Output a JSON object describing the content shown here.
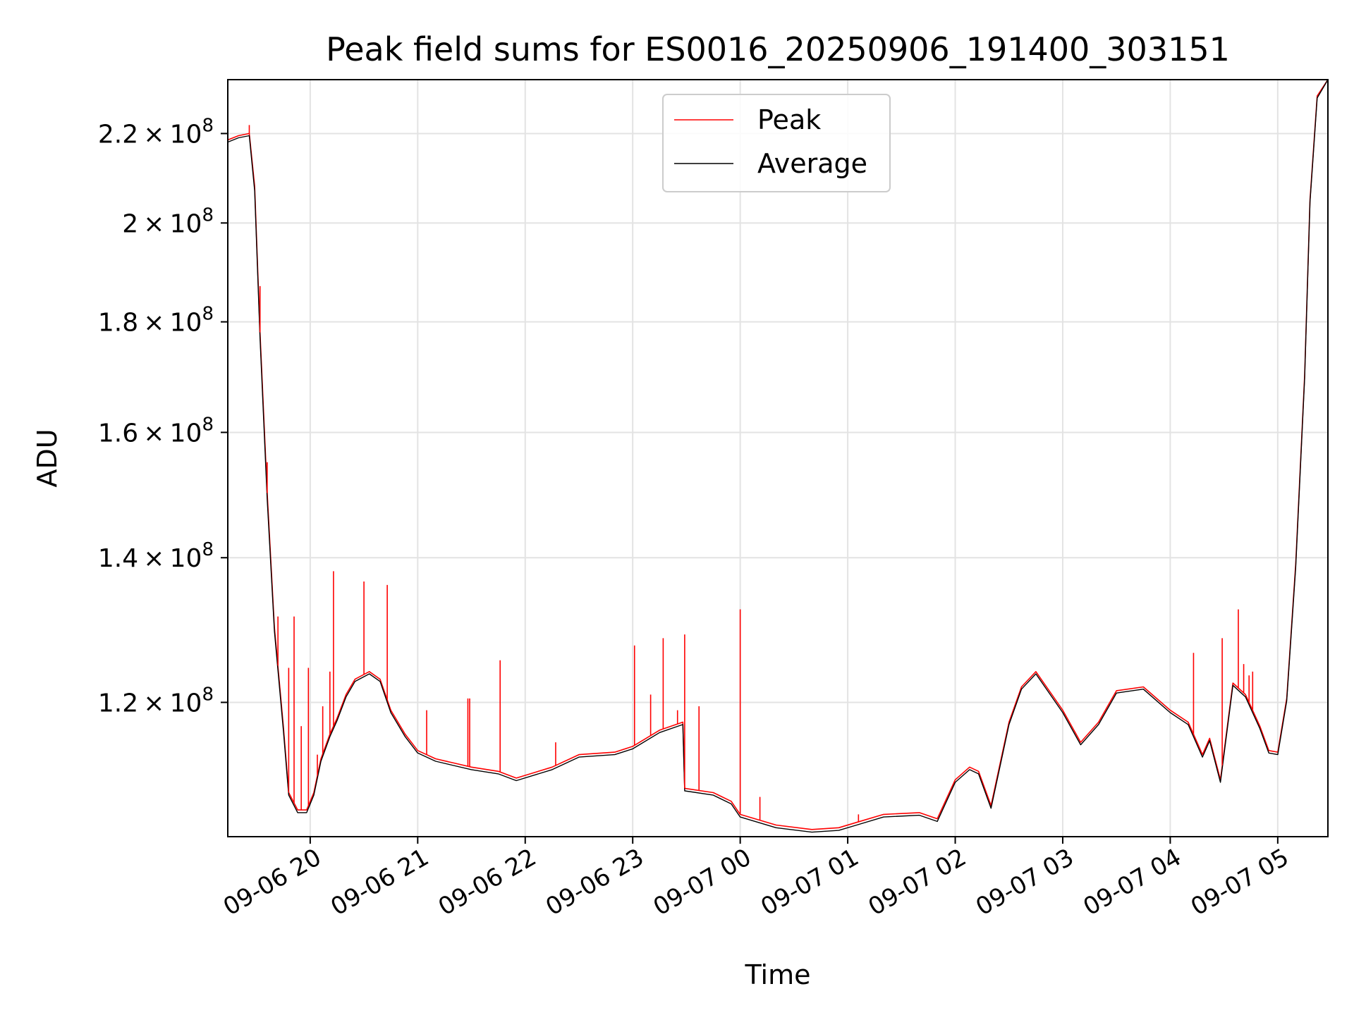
{
  "chart_data": {
    "type": "line",
    "title": "Peak field sums for ES0016_20250906_191400_303151",
    "xlabel": "Time",
    "ylabel": "ADU",
    "yscale": "log",
    "ylim": [
      104000000,
      233000000
    ],
    "xlim": [
      "2025-09-06 19:14",
      "2025-09-07 05:28"
    ],
    "grid": true,
    "legend": {
      "placement": "top-center"
    },
    "x_ticks": [
      "09-06 20",
      "09-06 21",
      "09-06 22",
      "09-06 23",
      "09-07 00",
      "09-07 01",
      "09-07 02",
      "09-07 03",
      "09-07 04",
      "09-07 05"
    ],
    "y_ticks": [
      {
        "value": 120000000,
        "mantissa": "1.2",
        "exponent": "8"
      },
      {
        "value": 140000000,
        "mantissa": "1.4",
        "exponent": "8"
      },
      {
        "value": 160000000,
        "mantissa": "1.6",
        "exponent": "8"
      },
      {
        "value": 180000000,
        "mantissa": "1.8",
        "exponent": "8"
      },
      {
        "value": 200000000,
        "mantissa": "2",
        "exponent": "8"
      },
      {
        "value": 220000000,
        "mantissa": "2.2",
        "exponent": "8"
      }
    ],
    "series": [
      {
        "name": "Peak",
        "color": "#ff0000",
        "x": [
          "2025-09-06 19:14",
          "2025-09-06 19:20",
          "2025-09-06 19:26",
          "2025-09-06 19:29",
          "2025-09-06 19:32",
          "2025-09-06 19:36",
          "2025-09-06 19:40",
          "2025-09-06 19:45",
          "2025-09-06 19:48",
          "2025-09-06 19:53",
          "2025-09-06 19:58",
          "2025-09-06 20:02",
          "2025-09-06 20:06",
          "2025-09-06 20:11",
          "2025-09-06 20:15",
          "2025-09-06 20:20",
          "2025-09-06 20:25",
          "2025-09-06 20:33",
          "2025-09-06 20:39",
          "2025-09-06 20:45",
          "2025-09-06 20:53",
          "2025-09-06 21:00",
          "2025-09-06 21:10",
          "2025-09-06 21:20",
          "2025-09-06 21:30",
          "2025-09-06 21:45",
          "2025-09-06 21:55",
          "2025-09-06 22:15",
          "2025-09-06 22:30",
          "2025-09-06 22:50",
          "2025-09-06 23:00",
          "2025-09-06 23:15",
          "2025-09-06 23:28",
          "2025-09-06 23:29",
          "2025-09-06 23:45",
          "2025-09-06 23:55",
          "2025-09-07 00:00",
          "2025-09-07 00:20",
          "2025-09-07 00:40",
          "2025-09-07 00:55",
          "2025-09-07 01:05",
          "2025-09-07 01:20",
          "2025-09-07 01:40",
          "2025-09-07 01:50",
          "2025-09-07 02:00",
          "2025-09-07 02:08",
          "2025-09-07 02:13",
          "2025-09-07 02:20",
          "2025-09-07 02:30",
          "2025-09-07 02:37",
          "2025-09-07 02:45",
          "2025-09-07 03:00",
          "2025-09-07 03:10",
          "2025-09-07 03:20",
          "2025-09-07 03:30",
          "2025-09-07 03:45",
          "2025-09-07 04:00",
          "2025-09-07 04:10",
          "2025-09-07 04:13",
          "2025-09-07 04:18",
          "2025-09-07 04:22",
          "2025-09-07 04:28",
          "2025-09-07 04:35",
          "2025-09-07 04:42",
          "2025-09-07 04:50",
          "2025-09-07 04:55",
          "2025-09-07 05:00",
          "2025-09-07 05:05",
          "2025-09-07 05:10",
          "2025-09-07 05:15",
          "2025-09-07 05:18",
          "2025-09-07 05:22",
          "2025-09-07 05:28"
        ],
        "values": [
          218500000,
          219500000,
          220000000,
          208000000,
          178000000,
          150000000,
          130000000,
          117000000,
          109000000,
          107000000,
          107000000,
          109000000,
          113000000,
          116000000,
          118000000,
          121000000,
          123000000,
          124000000,
          123000000,
          119000000,
          116000000,
          114000000,
          113000000,
          112500000,
          112000000,
          111500000,
          110700000,
          112000000,
          113500000,
          113800000,
          114500000,
          116500000,
          117500000,
          109500000,
          109000000,
          108000000,
          106500000,
          105300000,
          104800000,
          105000000,
          105600000,
          106500000,
          106700000,
          106000000,
          110500000,
          112000000,
          111500000,
          107500000,
          117500000,
          122000000,
          124000000,
          119000000,
          115000000,
          117500000,
          121500000,
          122000000,
          119000000,
          117500000,
          116000000,
          113500000,
          115500000,
          110500000,
          122500000,
          121000000,
          117000000,
          114000000,
          113800000,
          120500000,
          139000000,
          170000000,
          205000000,
          229000000,
          233000000
        ]
      },
      {
        "name": "Average",
        "color": "#000000",
        "x": [
          "2025-09-06 19:14",
          "2025-09-06 19:20",
          "2025-09-06 19:26",
          "2025-09-06 19:29",
          "2025-09-06 19:32",
          "2025-09-06 19:36",
          "2025-09-06 19:40",
          "2025-09-06 19:45",
          "2025-09-06 19:48",
          "2025-09-06 19:53",
          "2025-09-06 19:58",
          "2025-09-06 20:02",
          "2025-09-06 20:06",
          "2025-09-06 20:11",
          "2025-09-06 20:15",
          "2025-09-06 20:20",
          "2025-09-06 20:25",
          "2025-09-06 20:33",
          "2025-09-06 20:39",
          "2025-09-06 20:45",
          "2025-09-06 20:53",
          "2025-09-06 21:00",
          "2025-09-06 21:10",
          "2025-09-06 21:20",
          "2025-09-06 21:30",
          "2025-09-06 21:45",
          "2025-09-06 21:55",
          "2025-09-06 22:15",
          "2025-09-06 22:30",
          "2025-09-06 22:50",
          "2025-09-06 23:00",
          "2025-09-06 23:15",
          "2025-09-06 23:28",
          "2025-09-06 23:29",
          "2025-09-06 23:45",
          "2025-09-06 23:55",
          "2025-09-07 00:00",
          "2025-09-07 00:20",
          "2025-09-07 00:40",
          "2025-09-07 00:55",
          "2025-09-07 01:05",
          "2025-09-07 01:20",
          "2025-09-07 01:40",
          "2025-09-07 01:50",
          "2025-09-07 02:00",
          "2025-09-07 02:08",
          "2025-09-07 02:13",
          "2025-09-07 02:20",
          "2025-09-07 02:30",
          "2025-09-07 02:37",
          "2025-09-07 02:45",
          "2025-09-07 03:00",
          "2025-09-07 03:10",
          "2025-09-07 03:20",
          "2025-09-07 03:30",
          "2025-09-07 03:45",
          "2025-09-07 04:00",
          "2025-09-07 04:10",
          "2025-09-07 04:13",
          "2025-09-07 04:18",
          "2025-09-07 04:22",
          "2025-09-07 04:28",
          "2025-09-07 04:35",
          "2025-09-07 04:42",
          "2025-09-07 04:50",
          "2025-09-07 04:55",
          "2025-09-07 05:00",
          "2025-09-07 05:05",
          "2025-09-07 05:10",
          "2025-09-07 05:15",
          "2025-09-07 05:18",
          "2025-09-07 05:22",
          "2025-09-07 05:28"
        ],
        "values": [
          218000000,
          219000000,
          219500000,
          207000000,
          177000000,
          149000000,
          129500000,
          116500000,
          108700000,
          106700000,
          106700000,
          108700000,
          112700000,
          115700000,
          117700000,
          120700000,
          122700000,
          123700000,
          122700000,
          118700000,
          115700000,
          113700000,
          112700000,
          112200000,
          111700000,
          111200000,
          110400000,
          111700000,
          113200000,
          113500000,
          114200000,
          116200000,
          117200000,
          109200000,
          108700000,
          107700000,
          106200000,
          105000000,
          104500000,
          104700000,
          105300000,
          106200000,
          106400000,
          105700000,
          110200000,
          111700000,
          111200000,
          107200000,
          117200000,
          121700000,
          123700000,
          118700000,
          114700000,
          117200000,
          121200000,
          121700000,
          118700000,
          117200000,
          115700000,
          113200000,
          115200000,
          110200000,
          122200000,
          120700000,
          116700000,
          113700000,
          113500000,
          120200000,
          138500000,
          169500000,
          204500000,
          228500000,
          233000000
        ]
      }
    ],
    "spikes": [
      {
        "x": "2025-09-06 19:26",
        "value": 222000000
      },
      {
        "x": "2025-09-06 19:32",
        "value": 187000000
      },
      {
        "x": "2025-09-06 19:36",
        "value": 155000000
      },
      {
        "x": "2025-09-06 19:42",
        "value": 131500000
      },
      {
        "x": "2025-09-06 19:48",
        "value": 124500000
      },
      {
        "x": "2025-09-06 19:51",
        "value": 131500000
      },
      {
        "x": "2025-09-06 19:55",
        "value": 117000000
      },
      {
        "x": "2025-09-06 19:59",
        "value": 124500000
      },
      {
        "x": "2025-09-06 20:04",
        "value": 113500000
      },
      {
        "x": "2025-09-06 20:07",
        "value": 119500000
      },
      {
        "x": "2025-09-06 20:11",
        "value": 124000000
      },
      {
        "x": "2025-09-06 20:13",
        "value": 138000000
      },
      {
        "x": "2025-09-06 20:30",
        "value": 136500000
      },
      {
        "x": "2025-09-06 20:43",
        "value": 136000000
      },
      {
        "x": "2025-09-06 21:05",
        "value": 119000000
      },
      {
        "x": "2025-09-06 21:28",
        "value": 120500000
      },
      {
        "x": "2025-09-06 21:29",
        "value": 120500000
      },
      {
        "x": "2025-09-06 21:46",
        "value": 125500000
      },
      {
        "x": "2025-09-06 22:17",
        "value": 115000000
      },
      {
        "x": "2025-09-06 23:01",
        "value": 127500000
      },
      {
        "x": "2025-09-06 23:10",
        "value": 121000000
      },
      {
        "x": "2025-09-06 23:17",
        "value": 128500000
      },
      {
        "x": "2025-09-06 23:25",
        "value": 119000000
      },
      {
        "x": "2025-09-06 23:29",
        "value": 129000000
      },
      {
        "x": "2025-09-06 23:37",
        "value": 119500000
      },
      {
        "x": "2025-09-07 00:00",
        "value": 132500000
      },
      {
        "x": "2025-09-07 00:11",
        "value": 108500000
      },
      {
        "x": "2025-09-07 01:06",
        "value": 106500000
      },
      {
        "x": "2025-09-07 04:13",
        "value": 126500000
      },
      {
        "x": "2025-09-07 04:29",
        "value": 128500000
      },
      {
        "x": "2025-09-07 04:38",
        "value": 132500000
      },
      {
        "x": "2025-09-07 04:41",
        "value": 125000000
      },
      {
        "x": "2025-09-07 04:44",
        "value": 123500000
      },
      {
        "x": "2025-09-07 04:46",
        "value": 124000000
      }
    ]
  }
}
